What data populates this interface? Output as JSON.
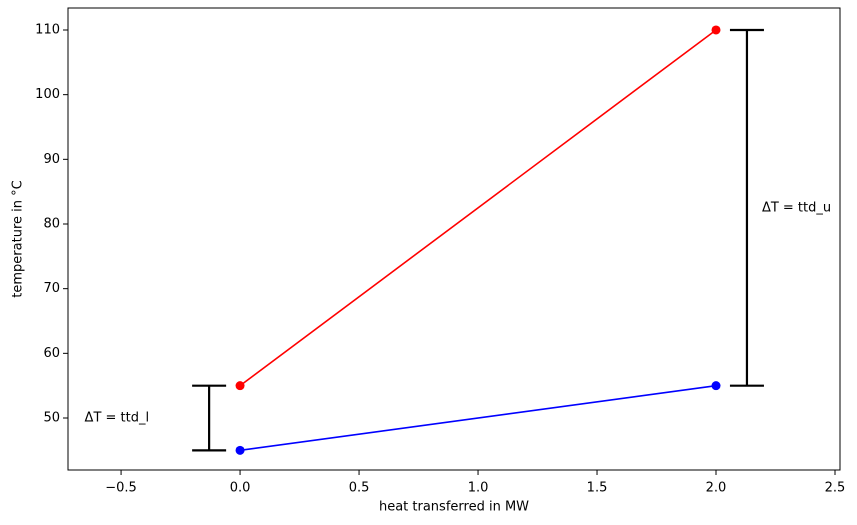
{
  "chart_data": {
    "type": "line",
    "xlabel": "heat transferred in MW",
    "ylabel": "temperature in °C",
    "xlim": [
      -0.723,
      2.521
    ],
    "ylim": [
      41.96,
      113.4
    ],
    "xticks": [
      {
        "value": -0.5,
        "label": "−0.5"
      },
      {
        "value": 0,
        "label": "0.0"
      },
      0.5,
      {
        "value": 1,
        "label": "1.0"
      },
      1.5,
      {
        "value": 2,
        "label": "2.0"
      },
      2.5
    ],
    "yticks": [
      50,
      60,
      70,
      80,
      90,
      100,
      110
    ],
    "series": [
      {
        "color": "#ff0000",
        "x": [
          0,
          2
        ],
        "values": [
          55,
          110
        ]
      },
      {
        "color": "#0000ff",
        "x": [
          0,
          2
        ],
        "values": [
          45,
          55
        ]
      }
    ],
    "annotations": [
      {
        "text": "ΔT = ttd_l",
        "x": -0.13,
        "y": [
          45,
          55
        ],
        "side": "left"
      },
      {
        "text": "ΔT = ttd_u",
        "x": 2.13,
        "y": [
          55,
          110
        ],
        "side": "right"
      }
    ]
  }
}
